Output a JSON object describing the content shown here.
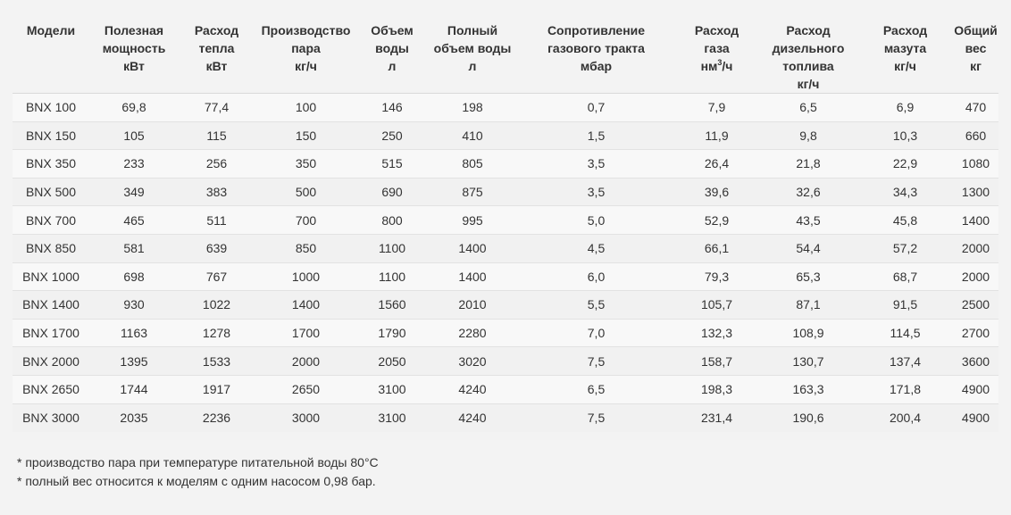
{
  "table": {
    "headers": [
      [
        "Модели"
      ],
      [
        "Полезная",
        "мощность",
        "кВт"
      ],
      [
        "Расход",
        "тепла",
        "кВт"
      ],
      [
        "Производство",
        "пара",
        "кг/ч"
      ],
      [
        "Объем",
        "воды",
        "л"
      ],
      [
        "Полный",
        "объем воды",
        "л"
      ],
      [
        "Сопротивление",
        "газового тракта",
        "мбар"
      ],
      [
        "Расход",
        "газа"
      ],
      [
        "Расход",
        "дизельного",
        "топлива",
        "кг/ч"
      ],
      [
        "Расход",
        "мазута",
        "кг/ч"
      ],
      [
        "Общий",
        "вес",
        "кг"
      ]
    ],
    "gas_unit": {
      "base": "нм",
      "sup": "3",
      "suffix": "/ч"
    },
    "rows": [
      [
        "BNX 100",
        "69,8",
        "77,4",
        "100",
        "146",
        "198",
        "0,7",
        "7,9",
        "6,5",
        "6,9",
        "470"
      ],
      [
        "BNX 150",
        "105",
        "115",
        "150",
        "250",
        "410",
        "1,5",
        "11,9",
        "9,8",
        "10,3",
        "660"
      ],
      [
        "BNX 350",
        "233",
        "256",
        "350",
        "515",
        "805",
        "3,5",
        "26,4",
        "21,8",
        "22,9",
        "1080"
      ],
      [
        "BNX 500",
        "349",
        "383",
        "500",
        "690",
        "875",
        "3,5",
        "39,6",
        "32,6",
        "34,3",
        "1300"
      ],
      [
        "BNX 700",
        "465",
        "511",
        "700",
        "800",
        "995",
        "5,0",
        "52,9",
        "43,5",
        "45,8",
        "1400"
      ],
      [
        "BNX 850",
        "581",
        "639",
        "850",
        "1100",
        "1400",
        "4,5",
        "66,1",
        "54,4",
        "57,2",
        "2000"
      ],
      [
        "BNX 1000",
        "698",
        "767",
        "1000",
        "1100",
        "1400",
        "6,0",
        "79,3",
        "65,3",
        "68,7",
        "2000"
      ],
      [
        "BNX 1400",
        "930",
        "1022",
        "1400",
        "1560",
        "2010",
        "5,5",
        "105,7",
        "87,1",
        "91,5",
        "2500"
      ],
      [
        "BNX 1700",
        "1163",
        "1278",
        "1700",
        "1790",
        "2280",
        "7,0",
        "132,3",
        "108,9",
        "114,5",
        "2700"
      ],
      [
        "BNX 2000",
        "1395",
        "1533",
        "2000",
        "2050",
        "3020",
        "7,5",
        "158,7",
        "130,7",
        "137,4",
        "3600"
      ],
      [
        "BNX 2650",
        "1744",
        "1917",
        "2650",
        "3100",
        "4240",
        "6,5",
        "198,3",
        "163,3",
        "171,8",
        "4900"
      ],
      [
        "BNX 3000",
        "2035",
        "2236",
        "3000",
        "3100",
        "4240",
        "7,5",
        "231,4",
        "190,6",
        "200,4",
        "4900"
      ]
    ]
  },
  "footnotes": [
    "* производство пара при температуре питательной воды 80°C",
    "* полный вес относится к моделям с одним насосом 0,98 бар."
  ]
}
